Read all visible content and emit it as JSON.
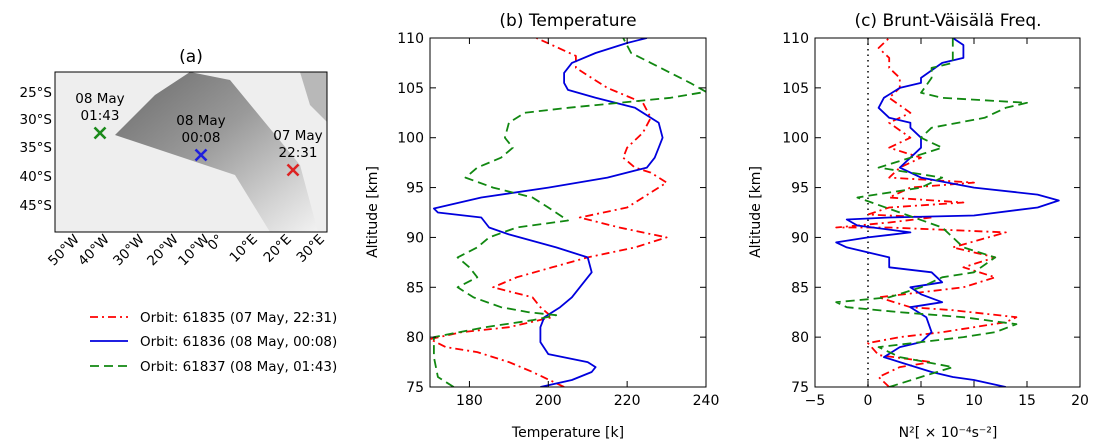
{
  "chart_data": [
    {
      "type": "map",
      "title": "(a)",
      "lat_labels": [
        "25°S",
        "30°S",
        "35°S",
        "40°S",
        "45°S"
      ],
      "lon_labels": [
        "50°W",
        "40°W",
        "30°W",
        "20°W",
        "10°W",
        "0°",
        "10°E",
        "20°E",
        "30°E"
      ],
      "markers": [
        {
          "label": [
            "08 May",
            "01:43"
          ],
          "color": "#1b8a1b",
          "lon": -38,
          "lat": -32
        },
        {
          "label": [
            "08 May",
            "00:08"
          ],
          "color": "#1f1fdd",
          "lon": -6,
          "lat": -36
        },
        {
          "label": [
            "07 May",
            "22:31"
          ],
          "color": "#dd2222",
          "lon": 21,
          "lat": -38
        }
      ]
    },
    {
      "type": "line",
      "title": "(b) Temperature",
      "xlabel": "Temperature [k]",
      "ylabel": "Altitude [km]",
      "xlim": [
        170,
        240
      ],
      "ylim": [
        75,
        110
      ],
      "xticks": [
        180,
        200,
        220,
        240
      ],
      "yticks": [
        75,
        80,
        85,
        90,
        95,
        100,
        105,
        110
      ],
      "series": [
        {
          "name": "Orbit: 61835 (07 May, 22:31)",
          "color": "#ff0000",
          "dash": "dashdot",
          "points": [
            [
              204,
              75
            ],
            [
              196,
              76.5
            ],
            [
              190,
              77.5
            ],
            [
              182,
              78.5
            ],
            [
              174,
              79
            ],
            [
              170,
              79.8
            ],
            [
              178,
              80.5
            ],
            [
              190,
              81
            ],
            [
              201,
              82
            ],
            [
              198,
              83
            ],
            [
              196,
              84
            ],
            [
              186,
              85
            ],
            [
              192,
              86
            ],
            [
              201,
              87
            ],
            [
              210,
              88
            ],
            [
              222,
              89
            ],
            [
              230,
              90
            ],
            [
              218,
              91
            ],
            [
              208,
              92
            ],
            [
              220,
              93
            ],
            [
              230,
              95.5
            ],
            [
              226,
              96.5
            ],
            [
              222,
              97
            ],
            [
              219,
              98
            ],
            [
              220,
              99
            ],
            [
              224,
              100.5
            ],
            [
              226,
              102
            ],
            [
              224,
              103.5
            ],
            [
              215,
              105
            ],
            [
              207,
              107
            ],
            [
              207,
              108.2
            ],
            [
              197,
              110
            ]
          ]
        },
        {
          "name": "Orbit: 61836 (08 May, 00:08)",
          "color": "#0000dd",
          "dash": "solid",
          "points": [
            [
              198,
              75
            ],
            [
              206,
              75.7
            ],
            [
              211,
              76.5
            ],
            [
              212,
              77
            ],
            [
              210,
              77.5
            ],
            [
              200,
              78.3
            ],
            [
              198,
              79.5
            ],
            [
              198,
              81
            ],
            [
              199,
              82
            ],
            [
              203,
              83
            ],
            [
              206,
              84
            ],
            [
              208,
              85
            ],
            [
              211,
              86.5
            ],
            [
              210,
              88
            ],
            [
              202,
              89
            ],
            [
              190,
              90.3
            ],
            [
              185,
              91
            ],
            [
              183,
              92
            ],
            [
              172,
              92.5
            ],
            [
              171,
              92.9
            ],
            [
              183,
              94
            ],
            [
              200,
              95
            ],
            [
              215,
              96
            ],
            [
              225,
              97
            ],
            [
              227,
              98
            ],
            [
              228,
              99
            ],
            [
              229,
              100
            ],
            [
              228,
              101.5
            ],
            [
              222,
              103
            ],
            [
              212,
              104
            ],
            [
              205,
              104.8
            ],
            [
              204,
              105.5
            ],
            [
              204,
              106.5
            ],
            [
              206,
              107.5
            ],
            [
              212,
              108.5
            ],
            [
              220,
              109.5
            ],
            [
              225,
              110
            ]
          ]
        },
        {
          "name": "Orbit: 61837 (08 May, 01:43)",
          "color": "#118811",
          "dash": "dashed",
          "points": [
            [
              176,
              75
            ],
            [
              172,
              76
            ],
            [
              171,
              78
            ],
            [
              171,
              80
            ],
            [
              184,
              81
            ],
            [
              196,
              81.7
            ],
            [
              202,
              82.2
            ],
            [
              195,
              82.5
            ],
            [
              188,
              83
            ],
            [
              181,
              84
            ],
            [
              177,
              85
            ],
            [
              182,
              86
            ],
            [
              180,
              87
            ],
            [
              177,
              88
            ],
            [
              182,
              89
            ],
            [
              185,
              90
            ],
            [
              192,
              91
            ],
            [
              205,
              91.7
            ],
            [
              200,
              93
            ],
            [
              196,
              94
            ],
            [
              186,
              95
            ],
            [
              179,
              96
            ],
            [
              182,
              97
            ],
            [
              188,
              98
            ],
            [
              191,
              99
            ],
            [
              189,
              100
            ],
            [
              190,
              101.5
            ],
            [
              194,
              102.5
            ],
            [
              205,
              103
            ],
            [
              218,
              103.5
            ],
            [
              231,
              104
            ],
            [
              240,
              104.6
            ],
            [
              236,
              105.5
            ],
            [
              226,
              107.5
            ],
            [
              221,
              108.5
            ],
            [
              219,
              110
            ]
          ]
        }
      ]
    },
    {
      "type": "line",
      "title": "(c) Brunt-Väisälä Freq.",
      "xlabel": "N²[ × 10⁻⁴s⁻²]",
      "ylabel": "Altitude [km]",
      "xlim": [
        -5,
        20
      ],
      "ylim": [
        75,
        110
      ],
      "xticks": [
        -5,
        0,
        5,
        10,
        15,
        20
      ],
      "yticks": [
        75,
        80,
        85,
        90,
        95,
        100,
        105,
        110
      ],
      "series": [
        {
          "name": "Orbit: 61835 (07 May, 22:31)",
          "color": "#ff0000",
          "dash": "dashdot",
          "points": [
            [
              2,
              75
            ],
            [
              1,
              76
            ],
            [
              3,
              77
            ],
            [
              6,
              77.5
            ],
            [
              1,
              78.2
            ],
            [
              0,
              79.4
            ],
            [
              3,
              80
            ],
            [
              7,
              80.5
            ],
            [
              13,
              81.5
            ],
            [
              14,
              82
            ],
            [
              8,
              82.7
            ],
            [
              4,
              83
            ],
            [
              1,
              84
            ],
            [
              9,
              85
            ],
            [
              12,
              86
            ],
            [
              9,
              87
            ],
            [
              12,
              88
            ],
            [
              8,
              89
            ],
            [
              13,
              90.5
            ],
            [
              2,
              91
            ],
            [
              -3,
              91
            ],
            [
              2,
              91.5
            ],
            [
              6,
              92
            ],
            [
              0,
              92.3
            ],
            [
              2,
              93
            ],
            [
              9,
              93.5
            ],
            [
              2,
              94
            ],
            [
              4,
              95
            ],
            [
              10,
              95.5
            ],
            [
              2,
              96
            ],
            [
              3,
              97
            ],
            [
              5,
              98
            ],
            [
              2,
              99
            ],
            [
              4,
              100
            ],
            [
              2,
              101.5
            ],
            [
              4,
              102.5
            ],
            [
              2,
              104
            ],
            [
              3,
              105
            ],
            [
              3,
              106
            ],
            [
              2,
              107
            ],
            [
              2,
              108
            ],
            [
              1,
              109
            ],
            [
              2,
              110
            ]
          ]
        },
        {
          "name": "Orbit: 61836 (08 May, 00:08)",
          "color": "#0000dd",
          "dash": "solid",
          "points": [
            [
              13,
              75
            ],
            [
              10,
              75.7
            ],
            [
              8,
              76
            ],
            [
              6,
              76.5
            ],
            [
              3,
              77.5
            ],
            [
              1.5,
              78
            ],
            [
              3,
              79
            ],
            [
              5,
              79.5
            ],
            [
              6,
              80.5
            ],
            [
              5.5,
              82
            ],
            [
              4,
              83
            ],
            [
              7,
              83.5
            ],
            [
              5,
              84.3
            ],
            [
              4,
              85
            ],
            [
              7,
              85.5
            ],
            [
              6,
              86.5
            ],
            [
              2,
              87
            ],
            [
              2,
              88
            ],
            [
              -2,
              89
            ],
            [
              -3,
              89.5
            ],
            [
              0,
              90
            ],
            [
              4,
              90.5
            ],
            [
              -1,
              91.2
            ],
            [
              -2,
              91.8
            ],
            [
              2,
              92
            ],
            [
              10,
              92.2
            ],
            [
              16,
              93
            ],
            [
              18,
              93.7
            ],
            [
              16,
              94.3
            ],
            [
              10,
              95
            ],
            [
              5,
              96
            ],
            [
              3,
              97
            ],
            [
              4,
              98
            ],
            [
              5,
              99
            ],
            [
              5,
              100
            ],
            [
              4,
              101
            ],
            [
              4,
              101.5
            ],
            [
              2,
              102
            ],
            [
              1,
              103
            ],
            [
              1.5,
              104
            ],
            [
              3,
              105
            ],
            [
              5,
              105.5
            ],
            [
              5,
              106
            ],
            [
              7,
              107.5
            ],
            [
              9,
              108
            ],
            [
              9,
              109.3
            ],
            [
              8,
              110
            ]
          ]
        },
        {
          "name": "Orbit: 61837 (08 May, 01:43)",
          "color": "#118811",
          "dash": "dashed",
          "points": [
            [
              2,
              75
            ],
            [
              5,
              76
            ],
            [
              8,
              77
            ],
            [
              3,
              78
            ],
            [
              1,
              79
            ],
            [
              9,
              80
            ],
            [
              12,
              80.5
            ],
            [
              14,
              81.3
            ],
            [
              9,
              82
            ],
            [
              3,
              82.5
            ],
            [
              -2,
              83
            ],
            [
              -3,
              83.5
            ],
            [
              2,
              84
            ],
            [
              5,
              85
            ],
            [
              7,
              86
            ],
            [
              10,
              86.5
            ],
            [
              12,
              88
            ],
            [
              9,
              89
            ],
            [
              8,
              90
            ],
            [
              7,
              91
            ],
            [
              3,
              92.5
            ],
            [
              -1,
              94
            ],
            [
              5,
              95
            ],
            [
              7,
              96
            ],
            [
              1,
              97
            ],
            [
              4,
              98
            ],
            [
              7,
              99
            ],
            [
              5,
              100
            ],
            [
              6,
              101
            ],
            [
              11,
              102
            ],
            [
              13,
              103
            ],
            [
              15,
              103.5
            ],
            [
              7,
              104
            ],
            [
              5,
              104.5
            ],
            [
              6,
              106
            ],
            [
              6,
              107
            ],
            [
              8,
              107.5
            ],
            [
              8,
              108.5
            ],
            [
              8,
              110
            ]
          ]
        }
      ]
    }
  ],
  "legend": {
    "entries": [
      "Orbit: 61835 (07 May, 22:31)",
      "Orbit: 61836 (08 May, 00:08)",
      "Orbit: 61837 (08 May, 01:43)"
    ]
  }
}
